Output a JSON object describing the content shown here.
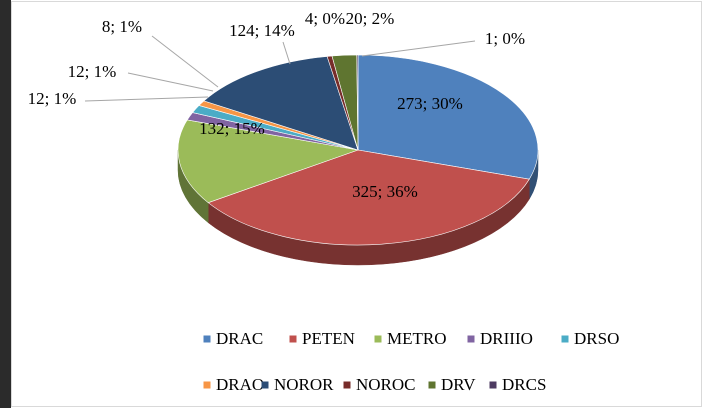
{
  "chart_data": {
    "type": "pie3d",
    "categories": [
      "DRAC",
      "PETEN",
      "METRO",
      "DRIIIO",
      "DRSO",
      "DRAO",
      "NOROR",
      "NOROC",
      "DRV",
      "DRCS"
    ],
    "values": [
      273,
      325,
      132,
      12,
      12,
      8,
      124,
      4,
      20,
      1
    ],
    "value_labels": [
      "273; 30%",
      "325; 36%",
      "132; 15%",
      "12; 1%",
      "12; 1%",
      "8; 1%",
      "124; 14%",
      "4; 0%",
      "20; 2%",
      "1; 0%"
    ],
    "colors": [
      "#4f81bd",
      "#c0504d",
      "#9bbb59",
      "#8064a2",
      "#4bacc6",
      "#f79646",
      "#2c4d75",
      "#772c2a",
      "#5f7530",
      "#4d3b62"
    ],
    "legend": "bottom"
  }
}
